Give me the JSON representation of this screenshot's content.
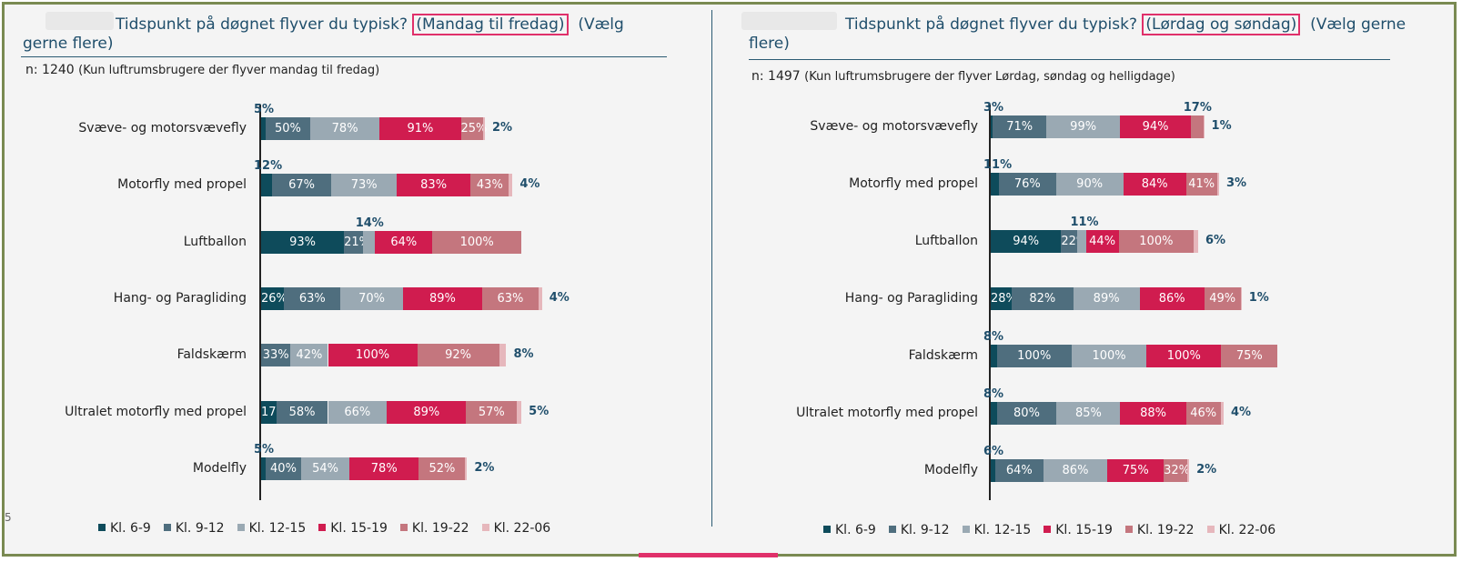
{
  "legend_colors": [
    "#0e4b5b",
    "#4f6e7e",
    "#9aa9b3",
    "#d01c4f",
    "#c4767e",
    "#e6b7bc"
  ],
  "chart_data": [
    {
      "type": "bar",
      "stacked": true,
      "orientation": "horizontal",
      "title_prefix": "Tidspunkt på døgnet flyver du typisk?",
      "title_highlight": "(Mandag til fredag)",
      "title_suffix": "(Vælg gerne flere)",
      "n_label": "n: 1240",
      "n_note": "(Kun luftrumsbrugere der flyver mandag til fredag)",
      "categories": [
        "Svæve- og motorsvævefly",
        "Motorfly med propel",
        "Luftballon",
        "Hang- og Paragliding",
        "Faldskærm",
        "Ultralet motorfly med propel",
        "Modelfly"
      ],
      "legend": [
        "Kl. 6-9",
        "Kl. 9-12",
        "Kl. 12-15",
        "Kl. 15-19",
        "Kl. 19-22",
        "Kl. 22-06"
      ],
      "series": [
        {
          "name": "Kl. 6-9",
          "values": [
            5,
            12,
            93,
            26,
            0,
            17,
            5
          ]
        },
        {
          "name": "Kl. 9-12",
          "values": [
            50,
            67,
            21,
            63,
            33,
            58,
            40
          ]
        },
        {
          "name": "Kl. 12-15",
          "values": [
            78,
            73,
            14,
            70,
            42,
            66,
            54
          ]
        },
        {
          "name": "Kl. 15-19",
          "values": [
            91,
            83,
            64,
            89,
            100,
            89,
            78
          ]
        },
        {
          "name": "Kl. 19-22",
          "values": [
            25,
            43,
            100,
            63,
            92,
            57,
            52
          ]
        },
        {
          "name": "Kl. 22-06",
          "values": [
            2,
            4,
            0,
            4,
            8,
            5,
            2
          ]
        }
      ]
    },
    {
      "type": "bar",
      "stacked": true,
      "orientation": "horizontal",
      "title_prefix": "Tidspunkt på døgnet flyver du typisk?",
      "title_highlight": "(Lørdag og søndag)",
      "title_suffix": "(Vælg gerne flere)",
      "n_label": "n: 1497",
      "n_note": "(Kun luftrumsbrugere der flyver Lørdag, søndag og helligdage)",
      "categories": [
        "Svæve- og motorsvævefly",
        "Motorfly med propel",
        "Luftballon",
        "Hang- og Paragliding",
        "Faldskærm",
        "Ultralet motorfly med propel",
        "Modelfly"
      ],
      "legend": [
        "Kl. 6-9",
        "Kl. 9-12",
        "Kl. 12-15",
        "Kl. 15-19",
        "Kl. 19-22",
        "Kl. 22-06"
      ],
      "series": [
        {
          "name": "Kl. 6-9",
          "values": [
            3,
            11,
            94,
            28,
            8,
            8,
            6
          ]
        },
        {
          "name": "Kl. 9-12",
          "values": [
            71,
            76,
            22,
            82,
            100,
            80,
            64
          ]
        },
        {
          "name": "Kl. 12-15",
          "values": [
            99,
            90,
            11,
            89,
            100,
            85,
            86
          ]
        },
        {
          "name": "Kl. 15-19",
          "values": [
            94,
            84,
            44,
            86,
            100,
            88,
            75
          ]
        },
        {
          "name": "Kl. 19-22",
          "values": [
            17,
            41,
            100,
            49,
            75,
            46,
            32
          ]
        },
        {
          "name": "Kl. 22-06",
          "values": [
            1,
            3,
            6,
            1,
            0,
            4,
            2
          ]
        }
      ]
    }
  ]
}
